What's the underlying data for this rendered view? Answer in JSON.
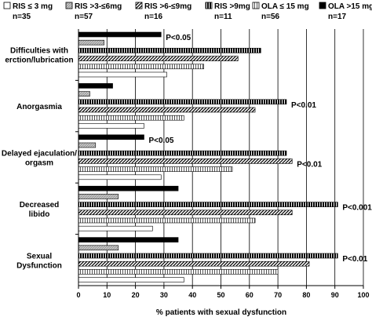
{
  "chart_data": {
    "type": "bar",
    "orientation": "horizontal",
    "xlabel": "% patients with sexual dysfunction",
    "ylabel": "",
    "xlim": [
      0,
      100
    ],
    "xticks": [
      0,
      10,
      20,
      30,
      40,
      50,
      60,
      70,
      80,
      90,
      100
    ],
    "grid": "vertical",
    "legend_placement": "top",
    "categories": [
      [
        "Difficulties with",
        "erction/lubrication"
      ],
      [
        "Anorgasmia"
      ],
      [
        "Delayed ejaculation/",
        "orgasm"
      ],
      [
        "Decreased",
        "libido"
      ],
      [
        "Sexual",
        "Dysfunction"
      ]
    ],
    "series": [
      {
        "name": "OLA >15 mg",
        "n": "n=17",
        "pattern": "solid-black",
        "values": [
          29,
          12,
          23,
          35,
          35
        ]
      },
      {
        "name": "RIS >3-≤6mg",
        "n": "n=57",
        "pattern": "gray-hatch",
        "values": [
          9,
          4,
          6,
          14,
          14
        ]
      },
      {
        "name": "RIS >9mg",
        "n": "n=11",
        "pattern": "vertical-stripes",
        "values": [
          64,
          73,
          73,
          91,
          91
        ]
      },
      {
        "name": "RIS >6-≤9mg",
        "n": "n=16",
        "pattern": "diagonal-hatch",
        "values": [
          56,
          62,
          75,
          75,
          81
        ]
      },
      {
        "name": "OLA ≤ 15 mg",
        "n": "n=56",
        "pattern": "fine-lines",
        "values": [
          44,
          37,
          54,
          62,
          70
        ]
      },
      {
        "name": "RIS ≤ 3 mg",
        "n": "n=35",
        "pattern": "white",
        "values": [
          31,
          23,
          29,
          26,
          37
        ]
      }
    ],
    "legend_order": [
      {
        "name": "RIS ≤ 3 mg",
        "n": "n=35",
        "pattern": "white"
      },
      {
        "name": "RIS >3-≤6mg",
        "n": "n=57",
        "pattern": "gray-hatch"
      },
      {
        "name": "RIS >6-≤9mg",
        "n": "n=16",
        "pattern": "diagonal-hatch"
      },
      {
        "name": "RIS >9mg",
        "n": "n=11",
        "pattern": "vertical-stripes"
      },
      {
        "name": "OLA ≤ 15 mg",
        "n": "n=56",
        "pattern": "fine-lines"
      },
      {
        "name": "OLA >15 mg",
        "n": "n=17",
        "pattern": "solid-black"
      }
    ],
    "annotations": [
      {
        "text": "P<0.05",
        "category": 0,
        "series": 0
      },
      {
        "text": "P<0.01",
        "category": 1,
        "series": 2
      },
      {
        "text": "P<0.05",
        "category": 2,
        "series": 0
      },
      {
        "text": "P<0.01",
        "category": 2,
        "series": 3
      },
      {
        "text": "P<0.001",
        "category": 3,
        "series": 2
      },
      {
        "text": "P<0.01",
        "category": 4,
        "series": 2
      }
    ]
  }
}
